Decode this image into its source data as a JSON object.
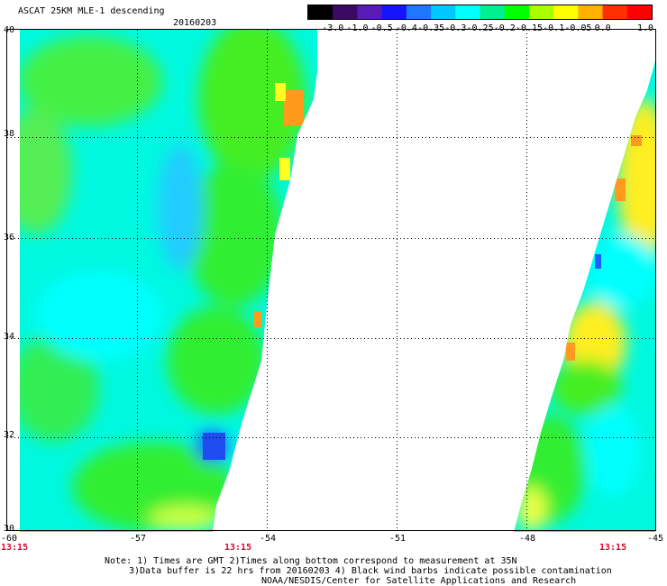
{
  "header": {
    "title": "ASCAT 25KM MLE-1 descending",
    "date": "20160203"
  },
  "colorbar": {
    "labels": [
      "-3.0",
      "-1.0",
      "-0.5",
      "-0.4",
      "-0.35",
      "-0.3",
      "-0.25",
      "-0.2",
      "-0.15",
      "-0.1",
      "-0.05",
      "0.0",
      "1.0"
    ],
    "colors": [
      "#000000",
      "#3c0a66",
      "#5a1ab8",
      "#1414ff",
      "#1e78ff",
      "#00c8ff",
      "#00ffff",
      "#00f090",
      "#00ff00",
      "#a8ff00",
      "#ffff00",
      "#ffb000",
      "#ff3000",
      "#ff0000"
    ]
  },
  "map": {
    "lat_labels": [
      "40",
      "38",
      "36",
      "34",
      "32",
      "30"
    ],
    "lon_labels": [
      "-60",
      "-57",
      "-54",
      "-51",
      "-48",
      "-45"
    ],
    "time_labels": [
      "13:15",
      "13:15",
      "13:15"
    ]
  },
  "footer": {
    "line1": "Note: 1) Times are GMT 2)Times along bottom correspond to measurement at 35N",
    "line2": "3)Data buffer is 22 hrs from 20160203 4) Black wind barbs indicate possible contamination",
    "line3": "NOAA/NESDIS/Center for Satellite Applications and Research"
  }
}
